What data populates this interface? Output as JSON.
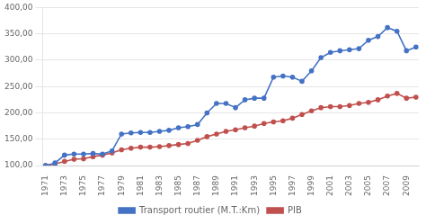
{
  "chart_data": {
    "type": "line",
    "x": [
      1971,
      1972,
      1973,
      1974,
      1975,
      1976,
      1977,
      1978,
      1979,
      1980,
      1981,
      1982,
      1983,
      1984,
      1985,
      1986,
      1987,
      1988,
      1989,
      1990,
      1991,
      1992,
      1993,
      1994,
      1995,
      1996,
      1997,
      1998,
      1999,
      2000,
      2001,
      2002,
      2003,
      2004,
      2005,
      2006,
      2007,
      2008,
      2009,
      2010
    ],
    "series": [
      {
        "name": "Transport routier (M.T.:Km)",
        "color": "#4472C4",
        "marker": "circle",
        "values": [
          100,
          105,
          120,
          122,
          122,
          123,
          122,
          128,
          160,
          162,
          163,
          163,
          165,
          167,
          172,
          174,
          178,
          200,
          218,
          218,
          210,
          225,
          228,
          228,
          268,
          270,
          268,
          260,
          280,
          305,
          315,
          318,
          320,
          322,
          338,
          345,
          362,
          355,
          318,
          325
        ]
      },
      {
        "name": "PIB",
        "color": "#C0504D",
        "marker": "circle",
        "values": [
          100,
          103,
          108,
          112,
          113,
          117,
          120,
          124,
          130,
          133,
          135,
          135,
          136,
          138,
          140,
          142,
          148,
          155,
          160,
          165,
          168,
          172,
          175,
          180,
          183,
          185,
          190,
          197,
          204,
          210,
          212,
          212,
          214,
          218,
          220,
          225,
          232,
          237,
          228,
          230
        ]
      }
    ],
    "xlim": [
      1970.7,
      2010.3
    ],
    "xticks": [
      1971,
      1973,
      1975,
      1977,
      1979,
      1981,
      1983,
      1985,
      1987,
      1989,
      1991,
      1993,
      1995,
      1997,
      1999,
      2001,
      2003,
      2005,
      2007,
      2009
    ],
    "ylim": [
      100,
      400
    ],
    "yticks": [
      {
        "value": 100,
        "label": "100,00"
      },
      {
        "value": 150,
        "label": "150,00"
      },
      {
        "value": 200,
        "label": "200,00"
      },
      {
        "value": 250,
        "label": "250,00"
      },
      {
        "value": 300,
        "label": "300,00"
      },
      {
        "value": 350,
        "label": "350,00"
      },
      {
        "value": 400,
        "label": "400,00"
      }
    ],
    "grid": true,
    "legend": "bottom"
  }
}
